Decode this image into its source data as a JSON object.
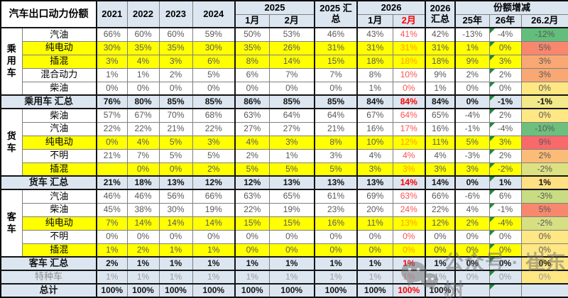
{
  "chart_data": {
    "type": "table",
    "title": "汽车出口动力份额",
    "header": {
      "title": "汽车出口动力份额",
      "years": [
        "2021",
        "2022",
        "2023",
        "2024"
      ],
      "group_2025": "2025",
      "months_2025": [
        "1月",
        "2月"
      ],
      "sum_2025": "2025 汇总",
      "group_2026": "2026",
      "months_2026": [
        "1月",
        "2月"
      ],
      "sum_2026": "2026 汇总",
      "delta_group": "份额增减",
      "delta_cols": [
        "25年",
        "26年",
        "26.2月"
      ]
    },
    "rows": [
      {
        "group": "乘用车",
        "group_rows": 5,
        "type": "data",
        "label": "汽油",
        "highlight": false,
        "values": [
          "66%",
          "60%",
          "60%",
          "59%",
          "50%",
          "53%",
          "46%",
          "43%",
          "41%",
          "42%",
          "-13%",
          "-4%",
          "-12%"
        ],
        "grade_color": "#63BE7B"
      },
      {
        "type": "data",
        "label": "纯电动",
        "highlight": true,
        "values": [
          "30%",
          "35%",
          "35%",
          "30%",
          "35%",
          "26%",
          "31%",
          "31%",
          "31%",
          "31%",
          "1%",
          "0%",
          "5%"
        ],
        "grade_color": "#F8876D"
      },
      {
        "type": "data",
        "label": "插混",
        "highlight": true,
        "values": [
          "3%",
          "4%",
          "3%",
          "6%",
          "8%",
          "14%",
          "15%",
          "18%",
          "18%",
          "18%",
          "9%",
          "3%",
          "3%"
        ],
        "grade_color": "#F9A873"
      },
      {
        "type": "data",
        "label": "混合动力",
        "highlight": false,
        "values": [
          "1%",
          "1%",
          "2%",
          "5%",
          "6%",
          "7%",
          "7%",
          "8%",
          "10%",
          "9%",
          "2%",
          "2%",
          "3%"
        ],
        "grade_color": "#F9A873"
      },
      {
        "type": "data",
        "label": "柴油",
        "highlight": false,
        "values": [
          "0%",
          "0%",
          "0%",
          "0%",
          "0%",
          "0%",
          "0%",
          "1%",
          "0%",
          "1%",
          "0%",
          "0%",
          "0%"
        ],
        "grade_color": "#FFE784"
      },
      {
        "type": "sum",
        "label": "乘用车 汇总",
        "values": [
          "76%",
          "80%",
          "85%",
          "85%",
          "86%",
          "85%",
          "85%",
          "84%",
          "84%",
          "84%",
          "0%",
          "-1%",
          "-1%"
        ],
        "grade_color": "#F3E88A"
      },
      {
        "group": "货车",
        "group_rows": 5,
        "type": "data",
        "label": "柴油",
        "highlight": false,
        "values": [
          "57%",
          "67%",
          "70%",
          "68%",
          "63%",
          "64%",
          "64%",
          "67%",
          "64%",
          "65%",
          "-4%",
          "2%",
          "0%"
        ],
        "grade_color": "#FFE784"
      },
      {
        "type": "data",
        "label": "汽油",
        "highlight": false,
        "values": [
          "22%",
          "22%",
          "21%",
          "22%",
          "27%",
          "27%",
          "21%",
          "16%",
          "17%",
          "16%",
          "-1%",
          "-4%",
          "-10%"
        ],
        "grade_color": "#6DC07C"
      },
      {
        "type": "data",
        "label": "纯电动",
        "highlight": true,
        "values": [
          "0%",
          "4%",
          "5%",
          "3%",
          "4%",
          "3%",
          "8%",
          "10%",
          "12%",
          "11%",
          "5%",
          "3%",
          "9%"
        ],
        "grade_color": "#F8696B"
      },
      {
        "type": "data",
        "label": "不明",
        "highlight": false,
        "values": [
          "21%",
          "7%",
          "5%",
          "5%",
          "2%",
          "1%",
          "3%",
          "4%",
          "4%",
          "4%",
          "-3%",
          "2%",
          "2%"
        ],
        "grade_color": "#FBBC78"
      },
      {
        "type": "data",
        "label": "插混",
        "highlight": true,
        "values": [
          "",
          "0%",
          "0%",
          "2%",
          "5%",
          "5%",
          "5%",
          "3%",
          "3%",
          "3%",
          "3%",
          "-2%",
          "-2%"
        ],
        "grade_color": "#DDE182"
      },
      {
        "type": "sum",
        "label": "货车 汇总",
        "values": [
          "21%",
          "18%",
          "13%",
          "12%",
          "12%",
          "13%",
          "13%",
          "13%",
          "14%",
          "14%",
          "0%",
          "1%",
          "1%"
        ],
        "grade_color": "#FFE083"
      },
      {
        "group": "客车",
        "group_rows": 5,
        "type": "data",
        "label": "汽油",
        "highlight": false,
        "values": [
          "46%",
          "46%",
          "56%",
          "66%",
          "63%",
          "65%",
          "61%",
          "69%",
          "63%",
          "66%",
          "-6%",
          "6%",
          "-3%"
        ],
        "grade_color": "#C8DC81"
      },
      {
        "type": "data",
        "label": "柴油",
        "highlight": false,
        "values": [
          "45%",
          "38%",
          "30%",
          "19%",
          "22%",
          "19%",
          "23%",
          "20%",
          "24%",
          "22%",
          "4%",
          "-1%",
          "5%"
        ],
        "grade_color": "#F8886D"
      },
      {
        "type": "data",
        "label": "纯电动",
        "highlight": true,
        "values": [
          "7%",
          "14%",
          "14%",
          "14%",
          "15%",
          "15%",
          "16%",
          "11%",
          "13%",
          "12%",
          "2%",
          "-4%",
          "-2%"
        ],
        "grade_color": "#D6DF82"
      },
      {
        "type": "data",
        "label": "不明",
        "highlight": false,
        "values": [
          "0%",
          "0%",
          "0%",
          "0%",
          "0%",
          "0%",
          "0%",
          "0%",
          "0%",
          "0%",
          "0%",
          "0%",
          "0%"
        ],
        "grade_color": "#FFE784"
      },
      {
        "type": "data",
        "label": "插混",
        "highlight": true,
        "values": [
          "1%",
          "2%",
          "1%",
          "1%",
          "0%",
          "0%",
          "0%",
          "0%",
          "0%",
          "0%",
          "0%",
          "0%",
          "0%"
        ],
        "grade_color": "#FFE784"
      },
      {
        "type": "sum",
        "label": "客车 汇总",
        "values": [
          "2%",
          "1%",
          "1%",
          "1%",
          "1%",
          "1%",
          "1%",
          "1%",
          "1%",
          "1%",
          "0%",
          "0%",
          "0%"
        ],
        "grade_color": "#FFE784"
      },
      {
        "type": "special",
        "label": "特种车",
        "values": [
          "1%",
          "1%",
          "1%",
          "1%",
          "1%",
          "1%",
          "1%",
          "1%",
          "1%",
          "1%",
          "0%",
          "0%",
          "0%"
        ],
        "grade_color": "#FFE784"
      },
      {
        "type": "total",
        "label": "总计",
        "values": [
          "100%",
          "100%",
          "100%",
          "100%",
          "100%",
          "100%",
          "100%",
          "100%",
          "100%",
          "100%",
          "",
          "",
          ""
        ],
        "grade_color": "#DCE6F1"
      }
    ]
  },
  "watermark": {
    "text": "公众号 · 崔东树",
    "icon": "wechat-icon"
  },
  "colors": {
    "highlight_row": "#FFFF00",
    "band_row": "#DCE6F1",
    "value_text": "#595959",
    "feb26_text": "#FF5252",
    "feb26_text_on_yellow": "#FFA000",
    "feb26_text_sum": "#FF0000",
    "triangle": "#1E8A3C"
  }
}
